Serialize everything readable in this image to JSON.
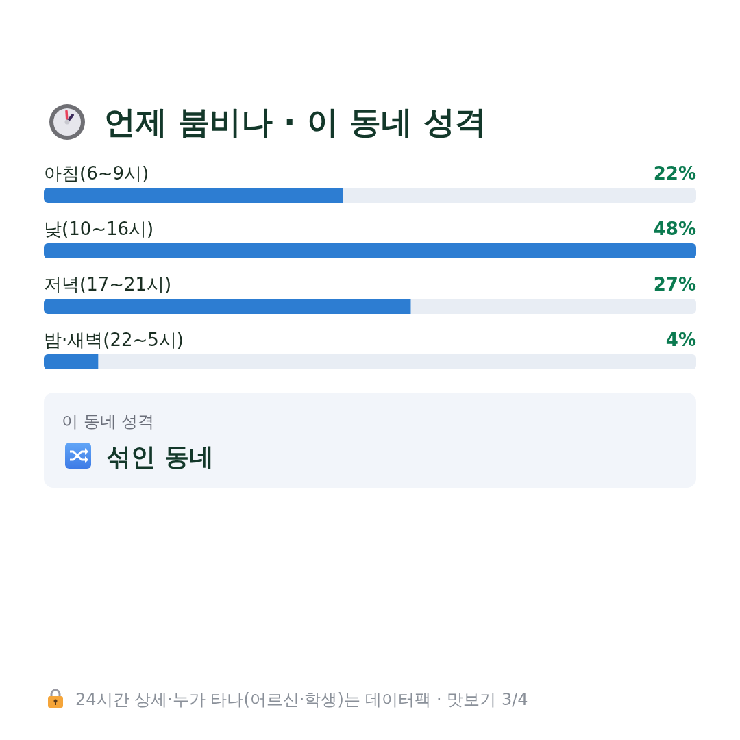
{
  "chart_data": {
    "type": "bar",
    "orientation": "horizontal",
    "title": "언제 붐비나 · 이 동네 성격",
    "categories": [
      "아침(6~9시)",
      "낮(10~16시)",
      "저녁(17~21시)",
      "밤·새벽(22~5시)"
    ],
    "values": [
      22,
      48,
      27,
      4
    ],
    "color": "#2d7dd2",
    "value_labels": [
      "22%",
      "48%",
      "27%",
      "4%"
    ],
    "xlim": [
      0,
      48
    ],
    "annotations": [
      "이 동네 성격",
      "섞인 동네",
      "24시간 상세·누가 타나(어르신·학생)는 데이터팩 · 맛보기 3/4"
    ]
  }
}
